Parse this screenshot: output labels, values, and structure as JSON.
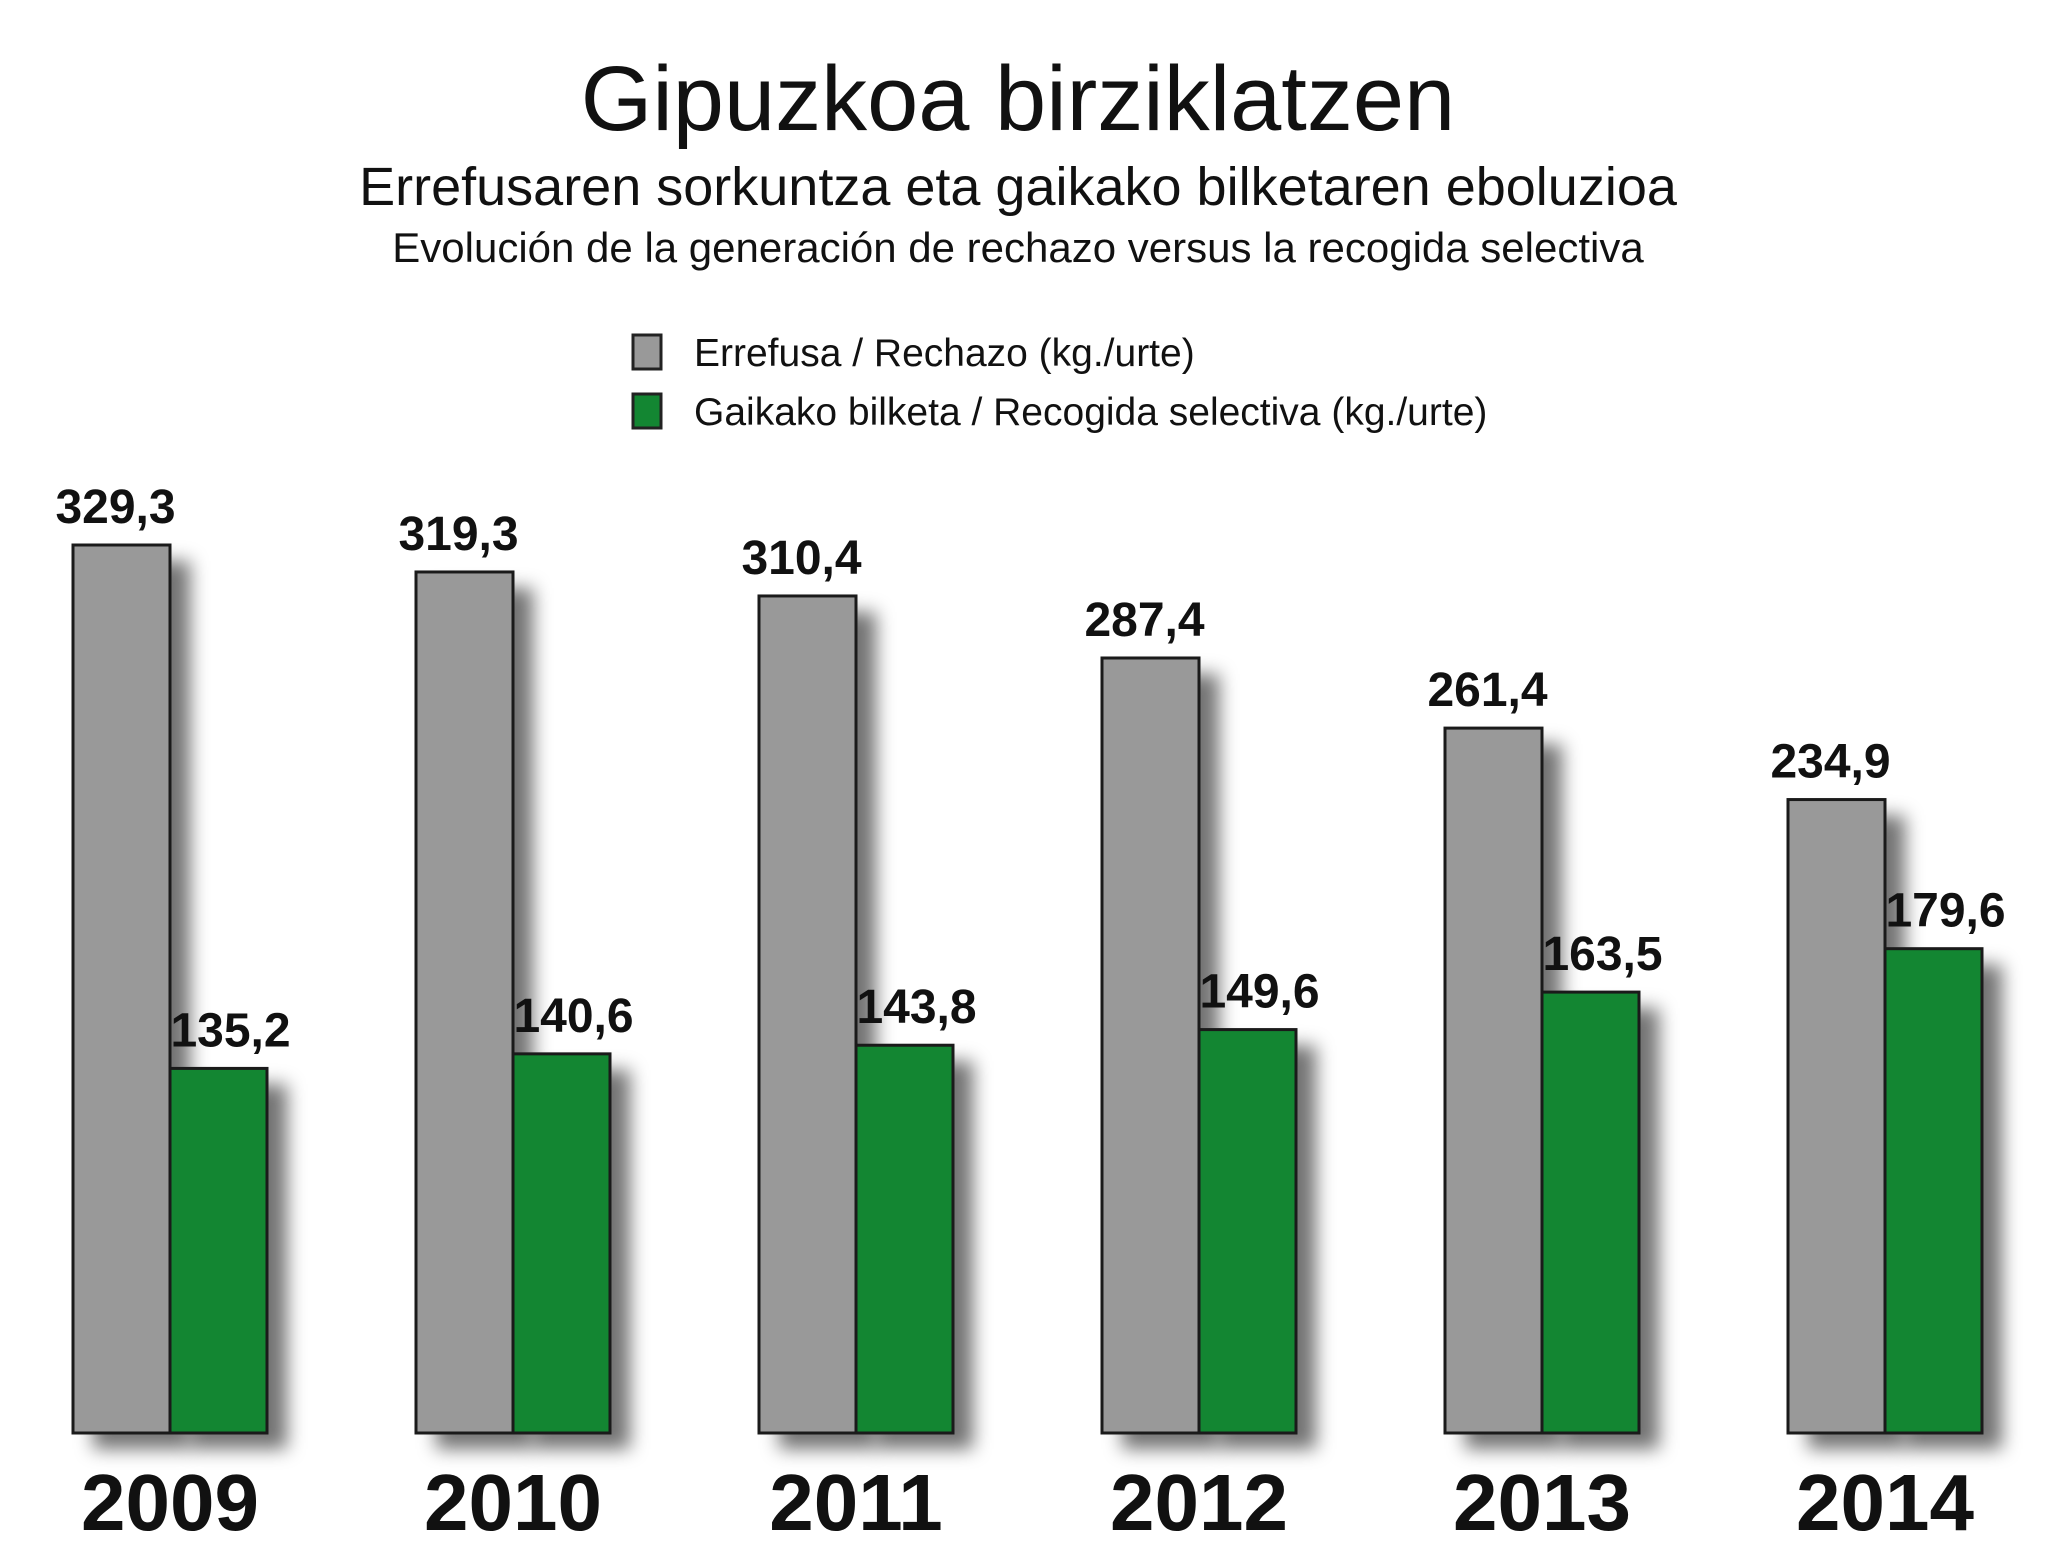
{
  "chart_data": {
    "type": "bar",
    "title": "Gipuzkoa birziklatzen",
    "subtitle": "Errefusaren sorkuntza eta gaikako bilketaren eboluzioa",
    "subtitle2": "Evolución de la generación de rechazo versus la recogida selectiva",
    "categories": [
      "2009",
      "2010",
      "2011",
      "2012",
      "2013",
      "2014"
    ],
    "series": [
      {
        "name": "Errefusa / Rechazo (kg./urte)",
        "color": "#999999",
        "values": [
          329.3,
          319.3,
          310.4,
          287.4,
          261.4,
          234.9
        ],
        "labels": [
          "329,3",
          "319,3",
          "310,4",
          "287,4",
          "261,4",
          "234,9"
        ]
      },
      {
        "name": "Gaikako bilketa / Recogida selectiva (kg./urte)",
        "color": "#138632",
        "values": [
          135.2,
          140.6,
          143.8,
          149.6,
          163.5,
          179.6
        ],
        "labels": [
          "135,2",
          "140,6",
          "143,8",
          "149,6",
          "163,5",
          "179,6"
        ]
      }
    ],
    "xlabel": "",
    "ylabel": "",
    "ylim": [
      0,
      329.3
    ],
    "grid": false,
    "legend_position": "top-center",
    "shadow": true
  }
}
